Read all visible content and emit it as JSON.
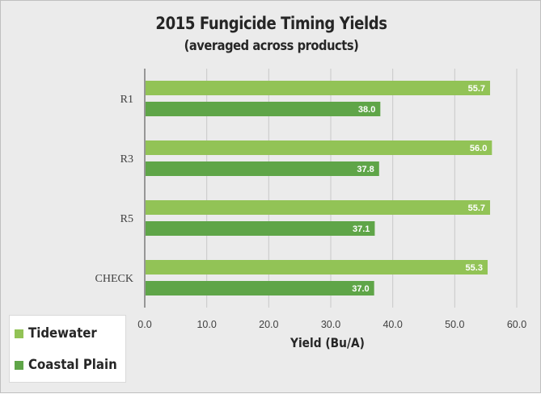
{
  "chart_data": {
    "type": "bar",
    "orientation": "horizontal",
    "title": "2015 Fungicide Timing Yields",
    "subtitle": "(averaged across products)",
    "xlabel": "Yield (Bu/A)",
    "ylabel": "",
    "categories": [
      "R1",
      "R3",
      "R5",
      "CHECK"
    ],
    "series": [
      {
        "name": "Tidewater",
        "values": [
          55.7,
          56.0,
          55.7,
          55.3
        ],
        "labels": [
          "55.7",
          "56.0",
          "55.7",
          "55.3"
        ],
        "color": "#92c356"
      },
      {
        "name": "Coastal Plain",
        "values": [
          38.0,
          37.8,
          37.1,
          37.0
        ],
        "labels": [
          "38.0",
          "37.8",
          "37.1",
          "37.0"
        ],
        "color": "#5fa548"
      }
    ],
    "xlim": [
      0,
      60
    ],
    "xticks": [
      "0.0",
      "10.0",
      "20.0",
      "30.0",
      "40.0",
      "50.0",
      "60.0"
    ],
    "grid": true,
    "legend_position": "bottom-left"
  }
}
